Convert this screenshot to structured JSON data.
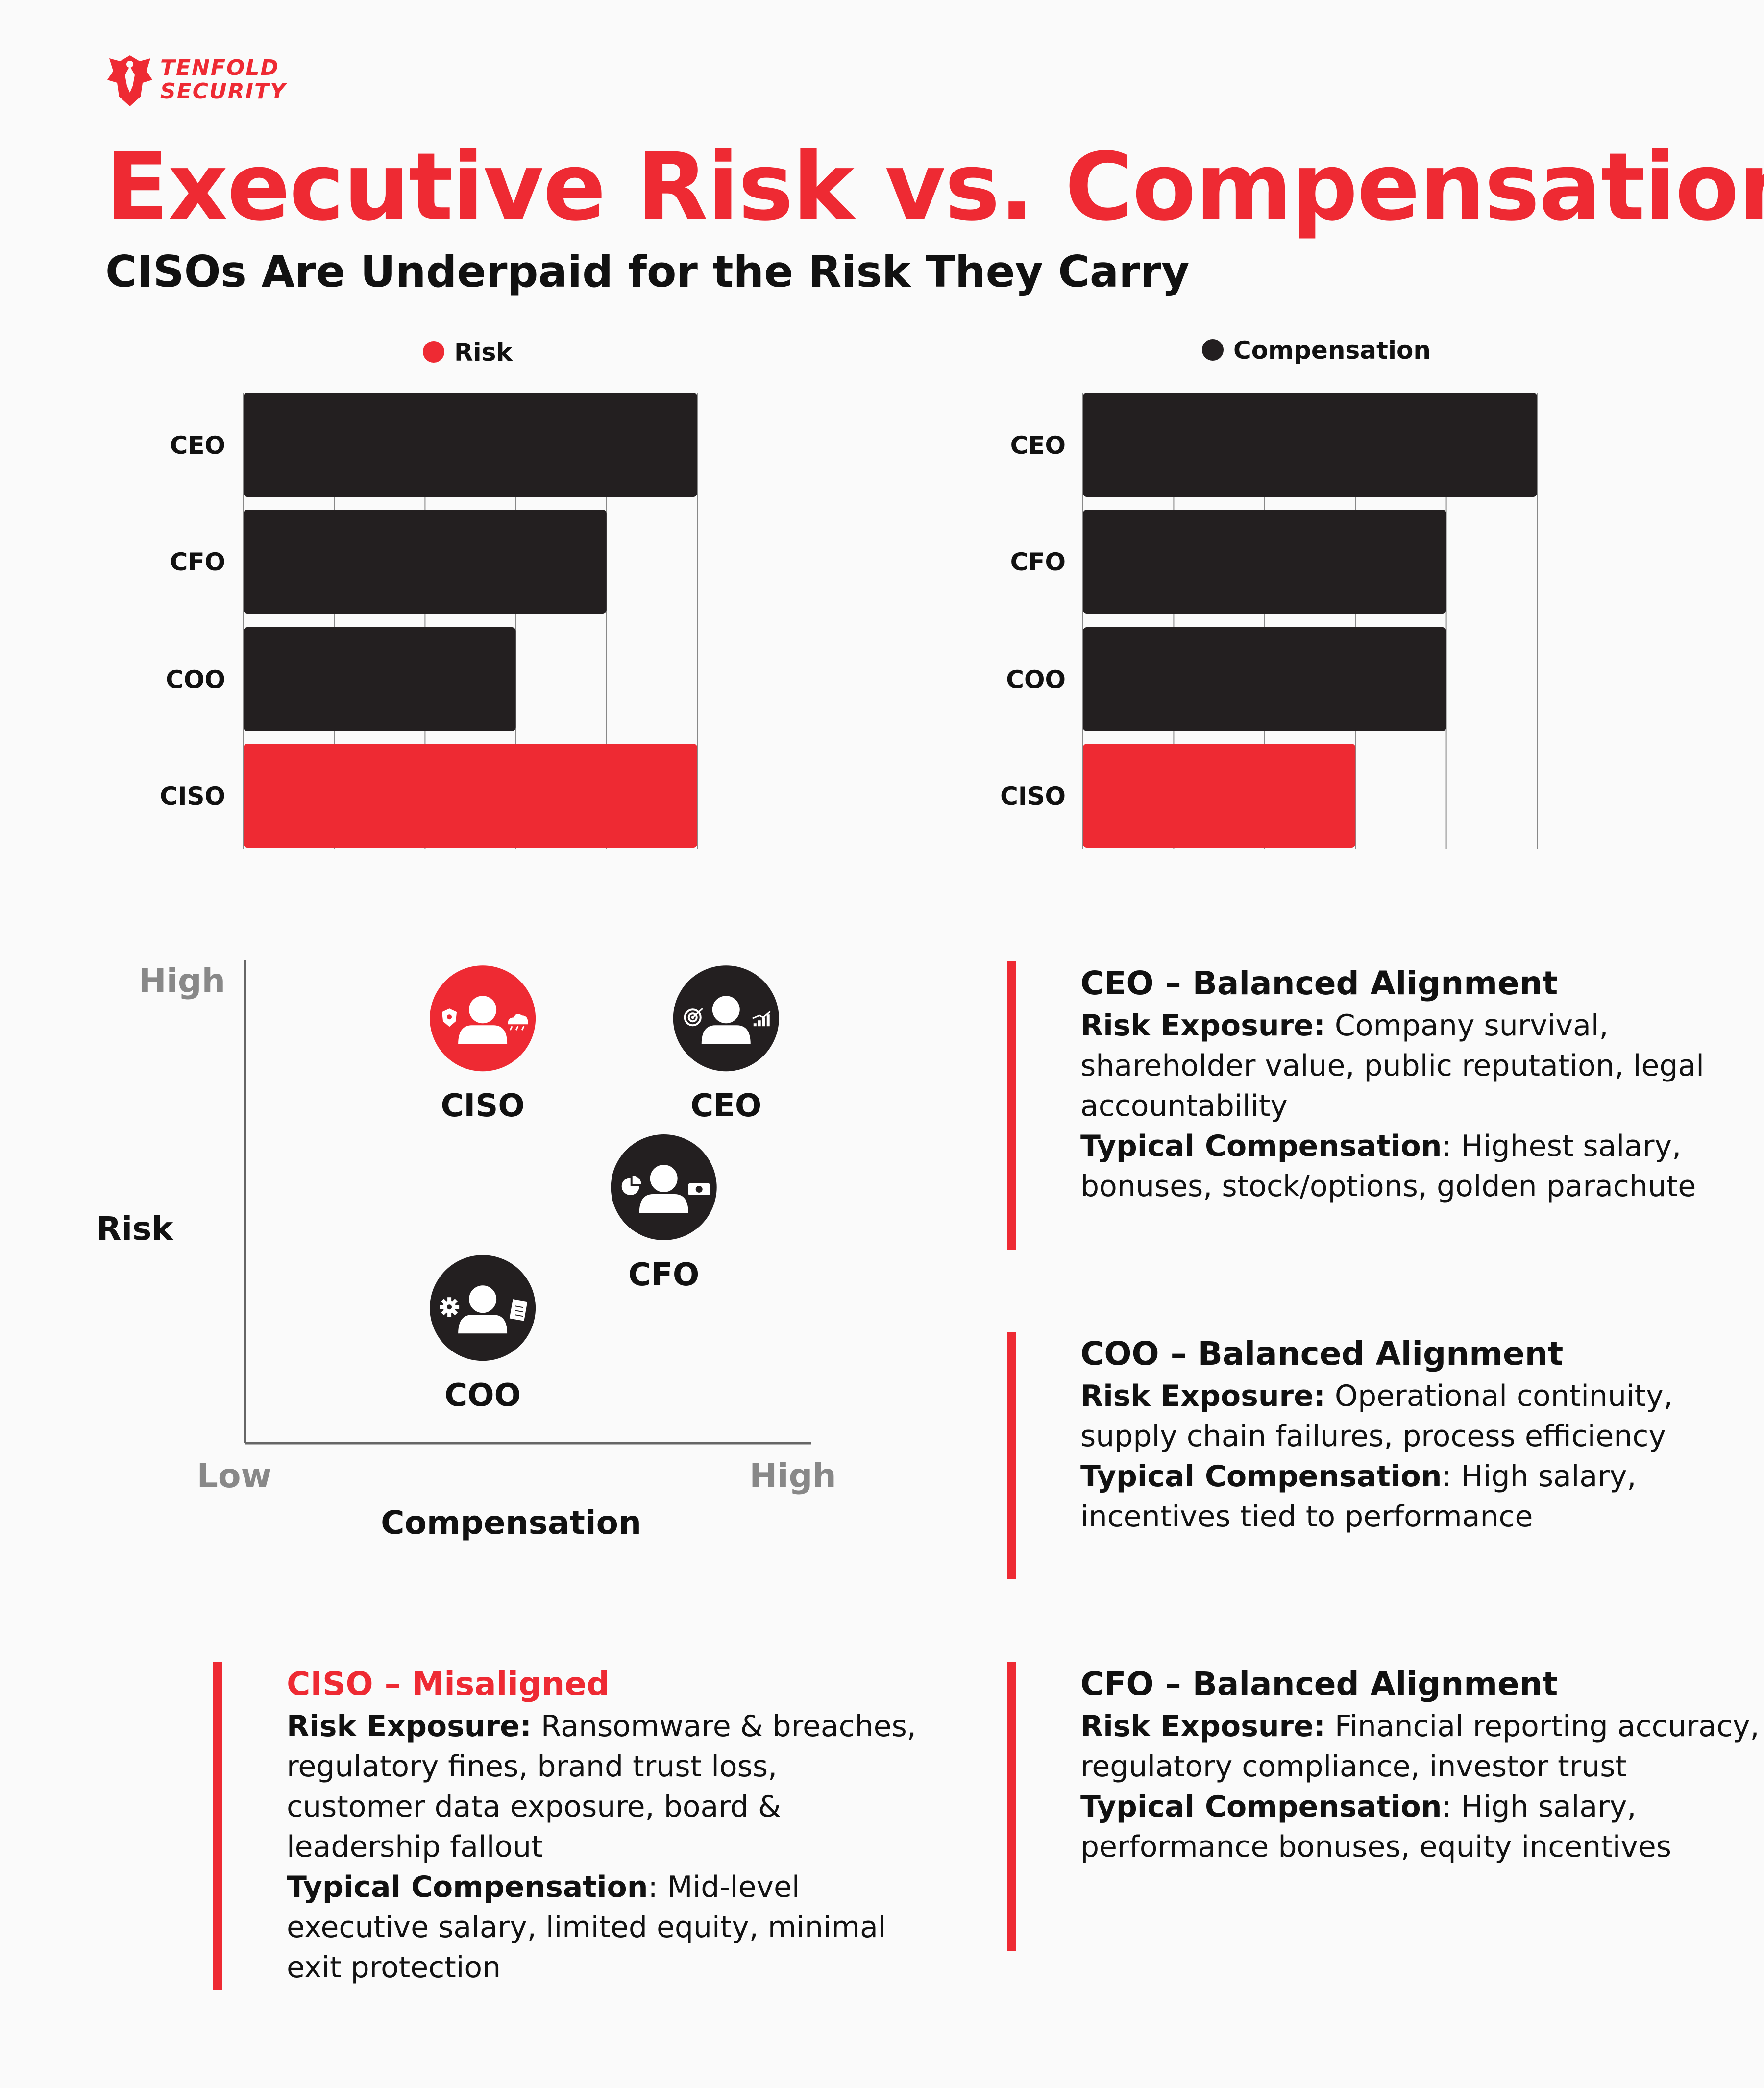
{
  "logo": {
    "line1": "TENFOLD",
    "line2": "SECURITY"
  },
  "title": "Executive Risk vs. Compensation",
  "subtitle": "CISOs Are Underpaid for the Risk They Carry",
  "colors": {
    "accent": "#ee2a33",
    "dark": "#231f20",
    "grid": "#888888"
  },
  "chart_data": [
    {
      "type": "bar",
      "orientation": "horizontal",
      "legend": "Risk",
      "categories": [
        "CEO",
        "CFO",
        "COO",
        "CISO"
      ],
      "values": [
        5,
        4,
        3,
        5
      ],
      "highlight": "CISO",
      "xlim": [
        0,
        5
      ],
      "grid": true
    },
    {
      "type": "bar",
      "orientation": "horizontal",
      "legend": "Compensation",
      "categories": [
        "CEO",
        "CFO",
        "COO",
        "CISO"
      ],
      "values": [
        5,
        4,
        4,
        3
      ],
      "highlight": "CISO",
      "xlim": [
        0,
        5
      ],
      "grid": true
    },
    {
      "type": "scatter",
      "xlabel": "Compensation",
      "ylabel": "Risk",
      "x_low": "Low",
      "x_high": "High",
      "y_high": "High",
      "points": [
        {
          "label": "CISO",
          "x": 0.42,
          "y": 0.88,
          "highlight": true,
          "icons": [
            "shield-icon",
            "cloud-icon"
          ]
        },
        {
          "label": "CEO",
          "x": 0.85,
          "y": 0.88,
          "highlight": false,
          "icons": [
            "target-icon",
            "growth-chart-icon"
          ]
        },
        {
          "label": "CFO",
          "x": 0.74,
          "y": 0.53,
          "highlight": false,
          "icons": [
            "pie-chart-icon",
            "cash-icon"
          ]
        },
        {
          "label": "COO",
          "x": 0.42,
          "y": 0.28,
          "highlight": false,
          "icons": [
            "gear-icon",
            "document-icon"
          ]
        }
      ]
    }
  ],
  "cards": {
    "ceo": {
      "heading": "CEO – Balanced Alignment",
      "risk_label": "Risk Exposure:",
      "risk_text": " Company survival, shareholder value, public reputation, legal accountability",
      "comp_label": "Typical Compensation",
      "comp_text": ": Highest salary, bonuses, stock/options, golden parachute"
    },
    "coo": {
      "heading": "COO – Balanced Alignment",
      "risk_label": "Risk Exposure:",
      "risk_text": " Operational continuity, supply chain failures, process efficiency",
      "comp_label": "Typical Compensation",
      "comp_text": ": High salary, incentives tied to performance"
    },
    "ciso": {
      "heading": "CISO –  Misaligned",
      "risk_label": "Risk Exposure:",
      "risk_text": " Ransomware & breaches, regulatory fines, brand trust loss, customer data exposure, board & leadership fallout",
      "comp_label": "Typical Compensation",
      "comp_text": ": Mid-level executive salary, limited equity, minimal exit protection"
    },
    "cfo": {
      "heading": "CFO – Balanced Alignment",
      "risk_label": "Risk Exposure:",
      "risk_text": " Financial reporting accuracy, regulatory compliance, investor trust",
      "comp_label": "Typical Compensation",
      "comp_text": ": High salary, performance bonuses, equity incentives"
    }
  }
}
